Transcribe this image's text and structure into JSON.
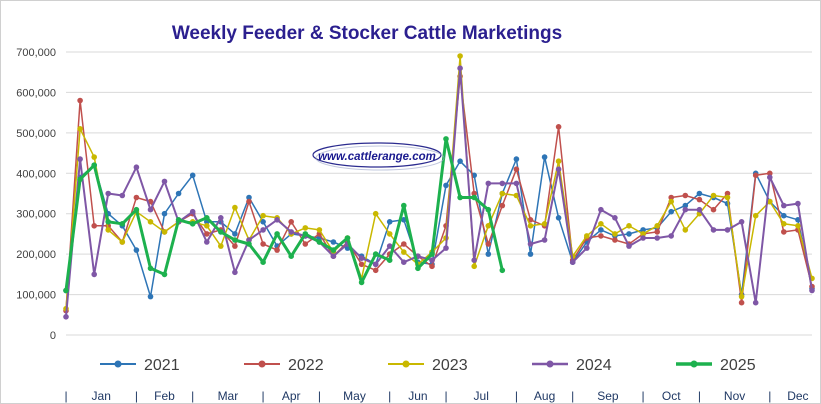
{
  "title": "Weekly Feeder & Stocker Cattle Marketings",
  "watermark": "www.cattlerange.com",
  "colors": {
    "title": "#2b1f8f",
    "watermark": "#1a1a8f",
    "grid": "#d9d9d9",
    "axis_text": "#404040",
    "month_text": "#1f3864"
  },
  "chart_data": {
    "type": "line",
    "title": "Weekly Feeder & Stocker Cattle Marketings",
    "xlabel": "",
    "ylabel": "",
    "ylim": [
      0,
      700000
    ],
    "grid": true,
    "legend_position": "bottom",
    "y_ticks": [
      "0",
      "100,000",
      "200,000",
      "300,000",
      "400,000",
      "500,000",
      "600,000",
      "700,000"
    ],
    "y_tick_values": [
      0,
      100000,
      200000,
      300000,
      400000,
      500000,
      600000,
      700000
    ],
    "months": [
      "Jan",
      "Feb",
      "Mar",
      "Apr",
      "May",
      "Jun",
      "Jul",
      "Aug",
      "Sep",
      "Oct",
      "Nov",
      "Dec"
    ],
    "x_label_weeks": [
      3.5,
      8,
      12.5,
      17,
      21.5,
      26,
      30.5,
      35,
      39.5,
      44,
      48.5,
      53
    ],
    "x_separator_weeks": [
      1,
      6,
      10,
      15,
      19,
      24,
      28,
      33,
      37,
      42,
      46,
      51,
      55
    ],
    "x_range": [
      1,
      54
    ],
    "series": [
      {
        "name": "2021",
        "color": "#2e75b6",
        "width": 1.5,
        "values": [
          110000,
          390000,
          420000,
          300000,
          270000,
          210000,
          95000,
          300000,
          350000,
          395000,
          280000,
          280000,
          250000,
          340000,
          280000,
          220000,
          250000,
          245000,
          240000,
          230000,
          215000,
          195000,
          175000,
          280000,
          285000,
          180000,
          175000,
          370000,
          430000,
          395000,
          200000,
          350000,
          435000,
          200000,
          440000,
          290000,
          180000,
          230000,
          260000,
          245000,
          250000,
          260000,
          265000,
          305000,
          320000,
          350000,
          340000,
          325000,
          100000,
          400000,
          330000,
          295000,
          285000,
          115000
        ]
      },
      {
        "name": "2022",
        "color": "#c0504d",
        "width": 1.5,
        "values": [
          60000,
          580000,
          270000,
          270000,
          230000,
          340000,
          330000,
          255000,
          280000,
          300000,
          250000,
          260000,
          220000,
          330000,
          225000,
          210000,
          280000,
          225000,
          250000,
          195000,
          230000,
          175000,
          160000,
          200000,
          225000,
          195000,
          170000,
          270000,
          640000,
          350000,
          225000,
          320000,
          410000,
          285000,
          270000,
          515000,
          185000,
          240000,
          245000,
          235000,
          225000,
          250000,
          255000,
          340000,
          345000,
          335000,
          310000,
          350000,
          80000,
          395000,
          400000,
          255000,
          260000,
          120000
        ]
      },
      {
        "name": "2023",
        "color": "#c9b800",
        "width": 1.5,
        "values": [
          65000,
          510000,
          440000,
          260000,
          230000,
          305000,
          280000,
          255000,
          280000,
          280000,
          270000,
          220000,
          315000,
          235000,
          295000,
          290000,
          250000,
          265000,
          260000,
          205000,
          240000,
          140000,
          300000,
          250000,
          205000,
          175000,
          205000,
          240000,
          690000,
          170000,
          270000,
          350000,
          345000,
          270000,
          275000,
          430000,
          195000,
          245000,
          275000,
          250000,
          270000,
          250000,
          270000,
          330000,
          260000,
          300000,
          345000,
          340000,
          95000,
          295000,
          330000,
          275000,
          270000,
          140000
        ]
      },
      {
        "name": "2024",
        "color": "#7f57a6",
        "width": 2,
        "values": [
          45000,
          435000,
          150000,
          350000,
          345000,
          415000,
          310000,
          380000,
          280000,
          305000,
          230000,
          290000,
          155000,
          235000,
          260000,
          285000,
          255000,
          245000,
          230000,
          195000,
          225000,
          190000,
          175000,
          220000,
          180000,
          195000,
          185000,
          215000,
          660000,
          185000,
          375000,
          375000,
          375000,
          225000,
          235000,
          410000,
          180000,
          215000,
          310000,
          290000,
          220000,
          240000,
          240000,
          245000,
          310000,
          310000,
          260000,
          260000,
          280000,
          80000,
          390000,
          320000,
          325000,
          110000
        ]
      },
      {
        "name": "2025",
        "color": "#1db14e",
        "width": 3,
        "values": [
          110000,
          385000,
          420000,
          280000,
          275000,
          310000,
          165000,
          150000,
          285000,
          275000,
          290000,
          255000,
          235000,
          225000,
          180000,
          250000,
          195000,
          250000,
          230000,
          210000,
          240000,
          130000,
          200000,
          185000,
          320000,
          165000,
          200000,
          485000,
          340000,
          340000,
          310000,
          160000
        ]
      }
    ]
  }
}
